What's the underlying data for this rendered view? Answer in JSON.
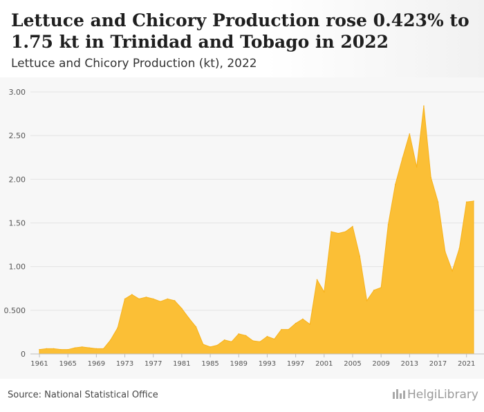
{
  "header": {
    "title": "Lettuce and Chicory Production rose 0.423% to 1.75 kt in Trinidad and Tobago in 2022",
    "subtitle": "Lettuce and Chicory Production (kt), 2022"
  },
  "footer": {
    "source": "Source: National Statistical Office",
    "logo_text": "HelgiLibrary"
  },
  "colors": {
    "fill": "#fbbf36",
    "stroke": "#f7b21b",
    "grid": "#e4e4e4",
    "axis_text": "#555555"
  },
  "chart_data": {
    "type": "area",
    "title": "Lettuce and Chicory Production (kt), 2022",
    "xlabel": "",
    "ylabel": "",
    "ylim": [
      0,
      3.0
    ],
    "yticks": [
      "0",
      "0.500",
      "1.00",
      "1.50",
      "2.00",
      "2.50",
      "3.00"
    ],
    "xticks": [
      "1961",
      "1965",
      "1969",
      "1973",
      "1977",
      "1981",
      "1985",
      "1989",
      "1993",
      "1997",
      "2001",
      "2005",
      "2009",
      "2013",
      "2017",
      "2021"
    ],
    "grid": true,
    "legend": "none",
    "x": [
      1961,
      1962,
      1963,
      1964,
      1965,
      1966,
      1967,
      1968,
      1969,
      1970,
      1971,
      1972,
      1973,
      1974,
      1975,
      1976,
      1977,
      1978,
      1979,
      1980,
      1981,
      1982,
      1983,
      1984,
      1985,
      1986,
      1987,
      1988,
      1989,
      1990,
      1991,
      1992,
      1993,
      1994,
      1995,
      1996,
      1997,
      1998,
      1999,
      2000,
      2001,
      2002,
      2003,
      2004,
      2005,
      2006,
      2007,
      2008,
      2009,
      2010,
      2011,
      2012,
      2013,
      2014,
      2015,
      2016,
      2017,
      2018,
      2019,
      2020,
      2021,
      2022
    ],
    "values": [
      0.05,
      0.06,
      0.06,
      0.05,
      0.05,
      0.07,
      0.08,
      0.07,
      0.06,
      0.06,
      0.16,
      0.3,
      0.63,
      0.68,
      0.63,
      0.65,
      0.63,
      0.6,
      0.63,
      0.61,
      0.52,
      0.41,
      0.31,
      0.11,
      0.08,
      0.1,
      0.16,
      0.14,
      0.23,
      0.21,
      0.15,
      0.14,
      0.2,
      0.17,
      0.28,
      0.28,
      0.35,
      0.4,
      0.34,
      0.85,
      0.71,
      1.4,
      1.38,
      1.4,
      1.46,
      1.12,
      0.61,
      0.73,
      0.76,
      1.48,
      1.94,
      2.24,
      2.52,
      2.14,
      2.84,
      2.02,
      1.74,
      1.17,
      0.95,
      1.21,
      1.74,
      1.75
    ]
  }
}
